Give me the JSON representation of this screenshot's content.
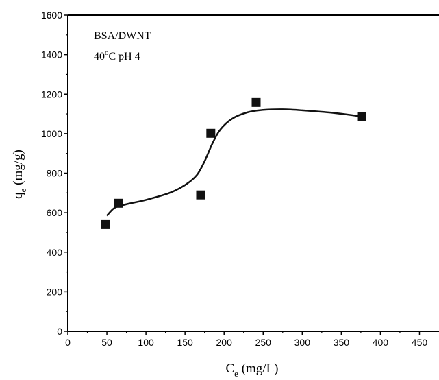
{
  "chart_data": {
    "type": "scatter",
    "title": "",
    "annotations": {
      "line1": "BSA/DWNT",
      "line2_prefix": "40",
      "line2_degree": "o",
      "line2_suffix": "C pH 4"
    },
    "xlabel": {
      "main": "C",
      "sub": "e",
      "unit": " (mg/L)"
    },
    "ylabel": {
      "main": "q",
      "sub": "e",
      "unit": " (mg/g)"
    },
    "xlim": [
      0,
      475
    ],
    "ylim": [
      0,
      1600
    ],
    "xticks": [
      0,
      50,
      100,
      150,
      200,
      250,
      300,
      350,
      400,
      450
    ],
    "yticks": [
      0,
      200,
      400,
      600,
      800,
      1000,
      1200,
      1400,
      1600
    ],
    "grid": false,
    "series": [
      {
        "marker": "square",
        "color": "#111111",
        "x": [
          48,
          65,
          170,
          183,
          241,
          376
        ],
        "y": [
          540,
          648,
          690,
          1002,
          1158,
          1085
        ]
      }
    ],
    "fit_curve": {
      "color": "#111111",
      "x": [
        50,
        60,
        75,
        100,
        130,
        150,
        165,
        175,
        185,
        195,
        210,
        230,
        250,
        275,
        300,
        340,
        376
      ],
      "y": [
        585,
        625,
        643,
        665,
        700,
        740,
        790,
        860,
        950,
        1020,
        1075,
        1108,
        1120,
        1123,
        1118,
        1105,
        1087
      ]
    }
  }
}
